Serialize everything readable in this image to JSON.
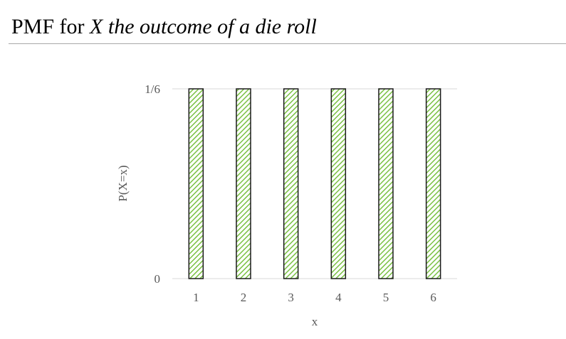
{
  "header": {
    "title_prefix": "PMF for ",
    "title_italic": "X the outcome of a die roll"
  },
  "chart_data": {
    "type": "bar",
    "categories": [
      "1",
      "2",
      "3",
      "4",
      "5",
      "6"
    ],
    "values": [
      0.16666667,
      0.16666667,
      0.16666667,
      0.16666667,
      0.16666667,
      0.16666667
    ],
    "xlabel": "x",
    "ylabel": "P(X=x)",
    "ylim": [
      0,
      0.16666667
    ],
    "ytick_values": [
      0,
      0.16666667
    ],
    "ytick_labels": [
      "0",
      "1/6"
    ],
    "grid": true,
    "legend": false,
    "bar_fill": "diagonal-hatch",
    "colors": {
      "hatch": "#7ac143",
      "bar_edge": "#1a1a1a",
      "gridline": "#d9d9d9",
      "axis": "#d9d9d9",
      "tick_text": "#595959"
    }
  }
}
